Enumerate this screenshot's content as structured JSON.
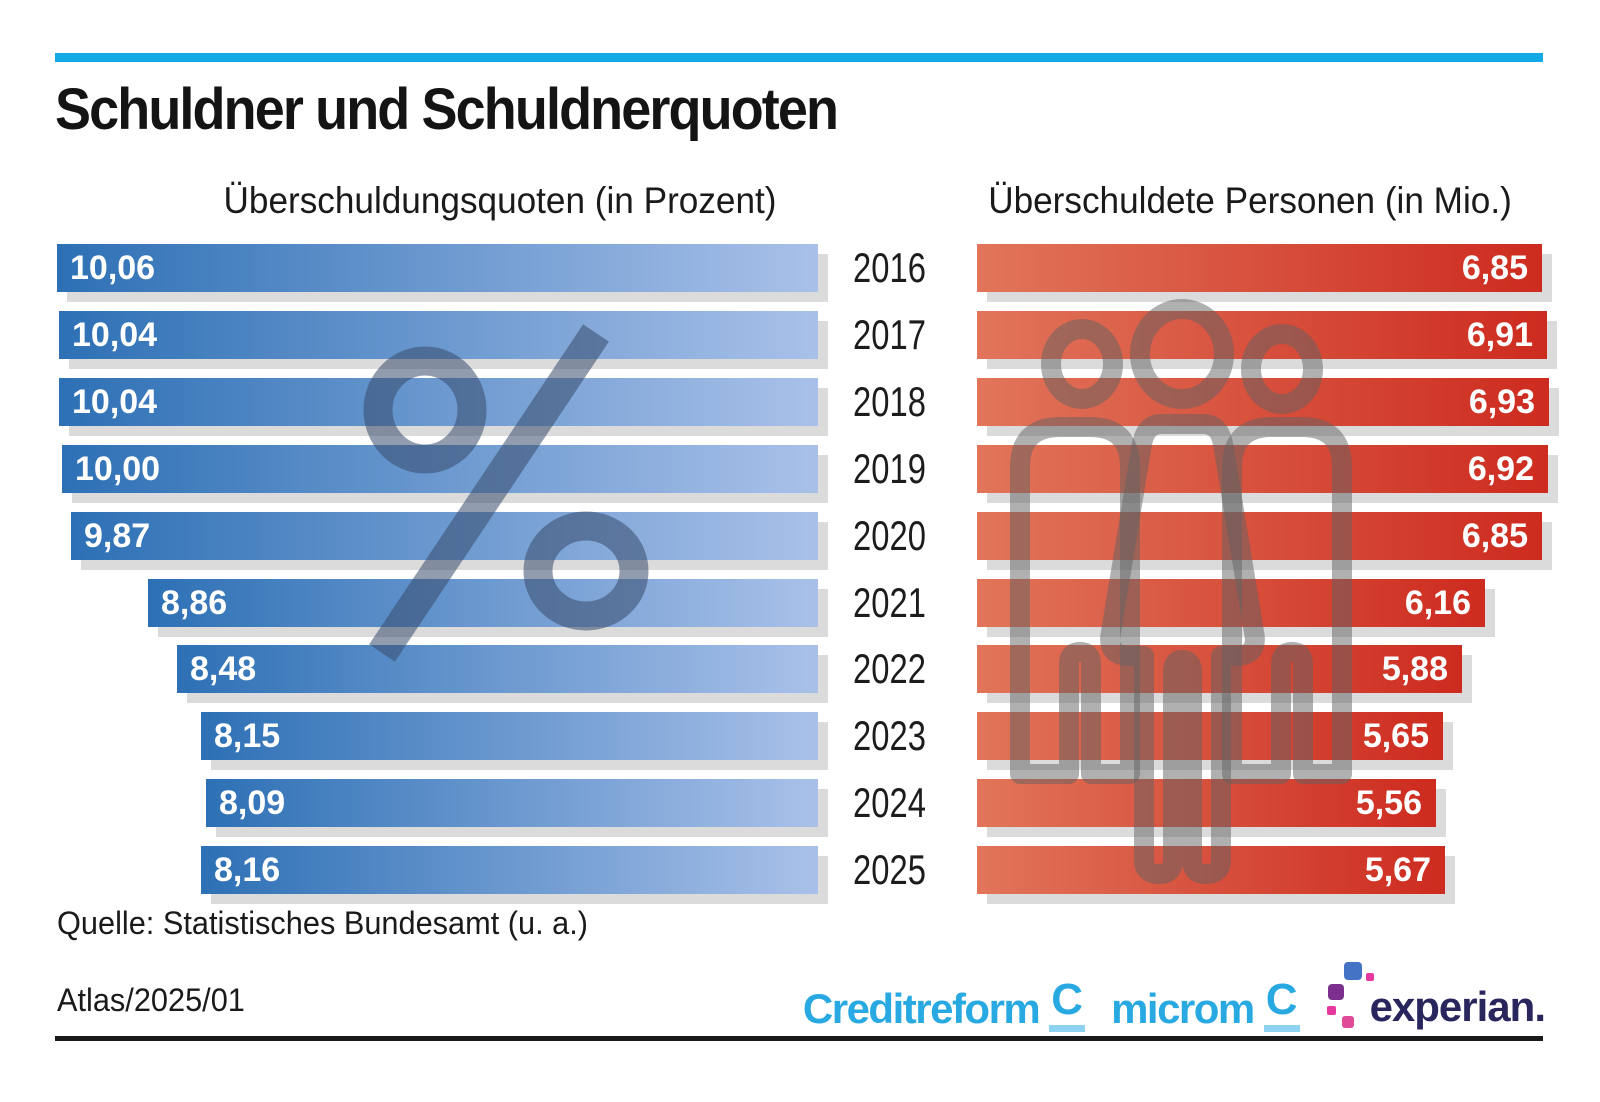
{
  "title": "Schuldner und Schuldnerquoten",
  "chart_data": {
    "type": "bar",
    "orientation": "horizontal",
    "categories": [
      "2016",
      "2017",
      "2018",
      "2019",
      "2020",
      "2021",
      "2022",
      "2023",
      "2024",
      "2025"
    ],
    "series": [
      {
        "name": "Überschuldungsquoten (in Prozent)",
        "side": "left",
        "anchor": "right-aligned bars growing to the left, value label at left end",
        "values": [
          10.06,
          10.04,
          10.04,
          10.0,
          9.87,
          8.86,
          8.48,
          8.15,
          8.09,
          8.16
        ],
        "labels": [
          "10,06",
          "10,04",
          "10,04",
          "10,00",
          "9,87",
          "8,86",
          "8,48",
          "8,15",
          "8,09",
          "8,16"
        ],
        "color_start": "#2d70b5",
        "color_end": "#a9c1e9",
        "label_color": "#ffffff"
      },
      {
        "name": "Überschuldete Personen (in Mio.)",
        "side": "right",
        "anchor": "left-aligned bars growing to the right, value label at right end",
        "values": [
          6.85,
          6.91,
          6.93,
          6.92,
          6.85,
          6.16,
          5.88,
          5.65,
          5.56,
          5.67
        ],
        "labels": [
          "6,85",
          "6,91",
          "6,93",
          "6,92",
          "6,85",
          "6,16",
          "5,88",
          "5,65",
          "5,56",
          "5,67"
        ],
        "color_start": "#e1755a",
        "color_end": "#cd2b1f",
        "label_color": "#ffffff"
      }
    ],
    "grid": false,
    "legend": false,
    "watermarks": [
      "percent-sign over left chart",
      "three-persons outline over right chart"
    ]
  },
  "colors": {
    "top_rule": "#12a9e4",
    "bottom_rule": "#1a1a1a",
    "bar_shadow": "#dbdbdb",
    "watermark_percent": "rgba(55,75,108,0.55)",
    "watermark_persons": "rgba(98,98,98,0.5)",
    "text": "#1a1a1a"
  },
  "footer": {
    "source": "Quelle: Statistisches Bundesamt (u. a.)",
    "edition": "Atlas/2025/01",
    "logos": {
      "creditreform": {
        "label": "Creditreform",
        "mark": "C",
        "color": "#29a9e1",
        "mark_underline": "#8ed3f1"
      },
      "microm": {
        "label": "microm",
        "mark": "C",
        "color": "#29a9e1",
        "mark_underline": "#8ed3f1"
      },
      "experian": {
        "label": "experian.",
        "color": "#29265e",
        "dots": [
          "#4472c4",
          "#e5399f",
          "#7d2f8e",
          "#e5399f",
          "#e04a98"
        ]
      }
    }
  }
}
